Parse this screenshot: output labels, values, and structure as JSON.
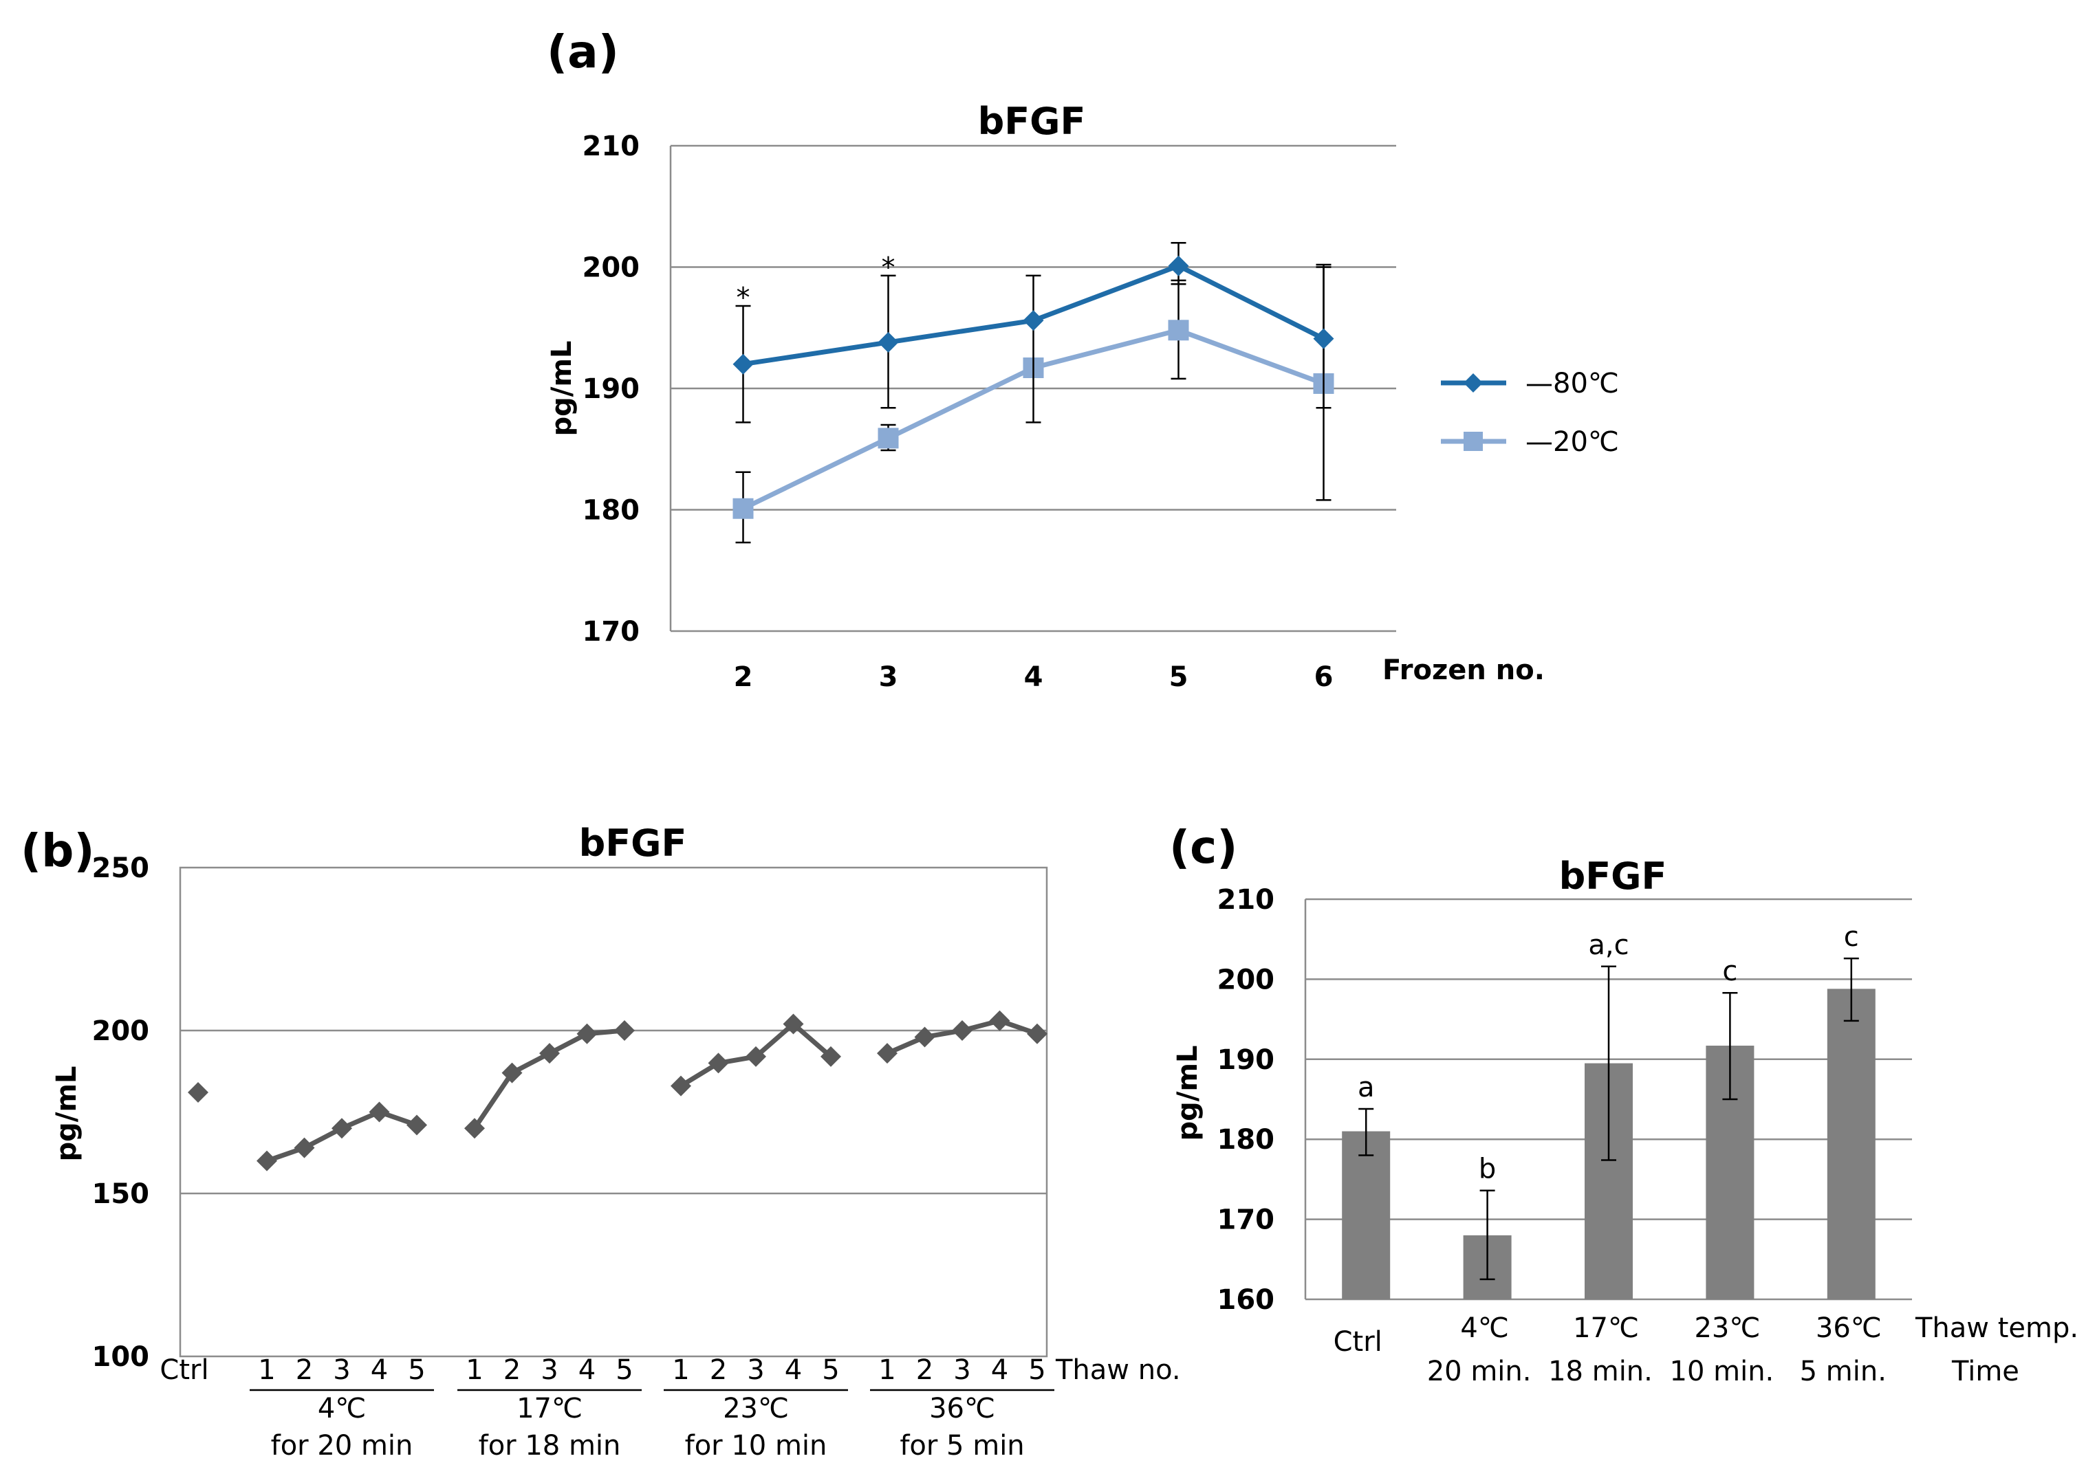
{
  "chart_data": [
    {
      "id": "a",
      "panel_label": "(a)",
      "type": "line",
      "title": "bFGF",
      "ylabel": "pg/mL",
      "xlabel": "Frozen no.",
      "ylim": [
        170,
        210
      ],
      "yticks": [
        170,
        180,
        190,
        200,
        210
      ],
      "categories": [
        "2",
        "3",
        "4",
        "5",
        "6"
      ],
      "grid": true,
      "legend_position": "right",
      "series": [
        {
          "name": "—80℃",
          "color": "#1f6ca8",
          "marker": "diamond",
          "values": [
            192.0,
            193.8,
            195.6,
            200.1,
            194.1
          ],
          "err_hi": [
            196.8,
            199.3,
            199.3,
            202.0,
            200.0
          ],
          "err_lo": [
            187.2,
            188.4,
            187.2,
            198.6,
            188.4
          ]
        },
        {
          "name": "—20℃",
          "color": "#8aaad4",
          "marker": "square",
          "values": [
            180.1,
            185.9,
            191.7,
            194.8,
            190.4
          ],
          "err_hi": [
            183.1,
            187.0,
            191.7,
            198.9,
            200.2
          ],
          "err_lo": [
            177.3,
            184.9,
            191.7,
            190.8,
            180.8
          ]
        }
      ],
      "annotations": [
        {
          "text": "*",
          "category": "2",
          "y": 197.5
        },
        {
          "text": "*",
          "category": "3",
          "y": 200.0
        }
      ]
    },
    {
      "id": "b",
      "panel_label": "(b)",
      "type": "line",
      "title": "bFGF",
      "ylabel": "pg/mL",
      "xlabel": "Thaw no.",
      "ylim": [
        100,
        250
      ],
      "yticks": [
        100,
        150,
        200,
        250
      ],
      "grid": true,
      "control": {
        "label": "Ctrl",
        "value": 181
      },
      "color": "#595959",
      "groups": [
        {
          "line1": "4℃",
          "line2": "for 20 min",
          "x": [
            "1",
            "2",
            "3",
            "4",
            "5"
          ],
          "values": [
            160,
            164,
            170,
            175,
            171
          ]
        },
        {
          "line1": "17℃",
          "line2": "for 18 min",
          "x": [
            "1",
            "2",
            "3",
            "4",
            "5"
          ],
          "values": [
            170,
            187,
            193,
            199,
            200
          ]
        },
        {
          "line1": "23℃",
          "line2": "for 10 min",
          "x": [
            "1",
            "2",
            "3",
            "4",
            "5"
          ],
          "values": [
            183,
            190,
            192,
            202,
            192
          ]
        },
        {
          "line1": "36℃",
          "line2": "for 5 min",
          "x": [
            "1",
            "2",
            "3",
            "4",
            "5"
          ],
          "values": [
            193,
            198,
            200,
            203,
            199
          ]
        }
      ]
    },
    {
      "id": "c",
      "panel_label": "(c)",
      "type": "bar",
      "title": "bFGF",
      "ylabel": "pg/mL",
      "xlabel_temp": "Thaw temp.",
      "xlabel_time": "Time",
      "ylim": [
        160,
        210
      ],
      "yticks": [
        160,
        170,
        180,
        190,
        200,
        210
      ],
      "grid": true,
      "color": "#808080",
      "categories": [
        "Ctrl",
        "4℃",
        "17℃",
        "23℃",
        "36℃"
      ],
      "times": [
        "",
        "20 min.",
        "18 min.",
        "10 min.",
        "5 min."
      ],
      "values": [
        181.0,
        168.0,
        189.5,
        191.7,
        198.8
      ],
      "err_hi": [
        183.8,
        173.6,
        201.6,
        198.3,
        202.6
      ],
      "err_lo": [
        178.0,
        162.5,
        177.4,
        185.0,
        194.8
      ],
      "letters": [
        "a",
        "b",
        "a,c",
        "c",
        "c"
      ]
    }
  ]
}
